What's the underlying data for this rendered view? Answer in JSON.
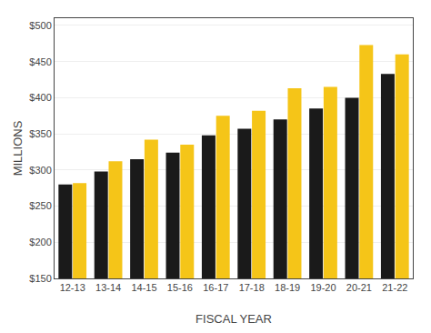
{
  "chart_data": {
    "type": "bar",
    "categories": [
      "12-13",
      "13-14",
      "14-15",
      "15-16",
      "16-17",
      "17-18",
      "18-19",
      "19-20",
      "20-21",
      "21-22"
    ],
    "series": [
      {
        "color": "#1a1a1a",
        "values": [
          280,
          298,
          315,
          324,
          348,
          357,
          370,
          385,
          400,
          433
        ]
      },
      {
        "color": "#f5c518",
        "values": [
          282,
          312,
          342,
          335,
          375,
          382,
          413,
          415,
          473,
          460
        ]
      }
    ],
    "xlabel": "FISCAL YEAR",
    "ylabel": "MILLIONS",
    "ylim": [
      150,
      510
    ],
    "yticks": [
      {
        "value": 150,
        "label": "$150"
      },
      {
        "value": 200,
        "label": "$200"
      },
      {
        "value": 250,
        "label": "$250"
      },
      {
        "value": 300,
        "label": "$300"
      },
      {
        "value": 350,
        "label": "$350"
      },
      {
        "value": 400,
        "label": "$400"
      },
      {
        "value": 450,
        "label": "$450"
      },
      {
        "value": 500,
        "label": "$500"
      }
    ],
    "grid": true
  }
}
